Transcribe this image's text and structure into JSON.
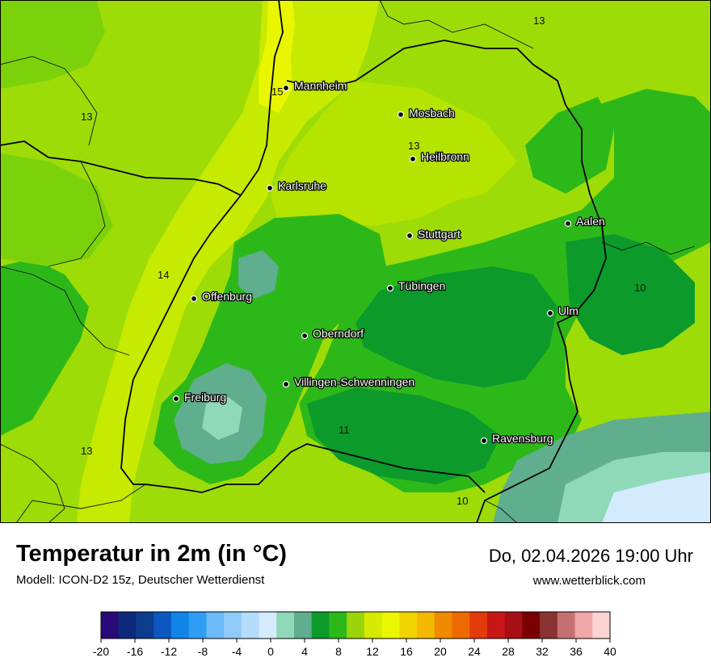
{
  "title": "Temperatur in 2m (in °C)",
  "model": "Modell: ICON-D2 15z, Deutscher Wetterdienst",
  "datetime": "Do, 02.04.2026 19:00 Uhr",
  "website": "www.wetterblick.com",
  "cities": [
    {
      "name": "Mannheim"
    },
    {
      "name": "Mosbach"
    },
    {
      "name": "Heilbronn"
    },
    {
      "name": "Karlsruhe"
    },
    {
      "name": "Stuttgart"
    },
    {
      "name": "Aalen"
    },
    {
      "name": "Tübingen"
    },
    {
      "name": "Offenburg"
    },
    {
      "name": "Ulm"
    },
    {
      "name": "Oberndorf"
    },
    {
      "name": "Villingen-Schwenningen"
    },
    {
      "name": "Freiburg"
    },
    {
      "name": "Ravensburg"
    }
  ],
  "isotherm_labels": [
    "15",
    "13",
    "13",
    "13",
    "13",
    "14",
    "11",
    "10",
    "10"
  ],
  "legend": {
    "ticks": [
      "-20",
      "-16",
      "-12",
      "-8",
      "-4",
      "0",
      "4",
      "8",
      "12",
      "16",
      "20",
      "24",
      "28",
      "32",
      "36",
      "40"
    ],
    "colors": [
      "#2a0a78",
      "#0d2a7a",
      "#0b3d8c",
      "#0a58c0",
      "#1184e8",
      "#2f9df5",
      "#6cbaf8",
      "#8ecbfa",
      "#b3dcfc",
      "#d4ebfd",
      "#8fd9b8",
      "#5fae8e",
      "#0c9a2b",
      "#2db81a",
      "#9ad40a",
      "#d6ea00",
      "#eaf700",
      "#f2d500",
      "#f5b800",
      "#f08a00",
      "#ee6a00",
      "#e23a0a",
      "#c81616",
      "#a80f14",
      "#7a0000",
      "#8b3232",
      "#c47070",
      "#f0a7a7",
      "#fcd4d4"
    ]
  }
}
